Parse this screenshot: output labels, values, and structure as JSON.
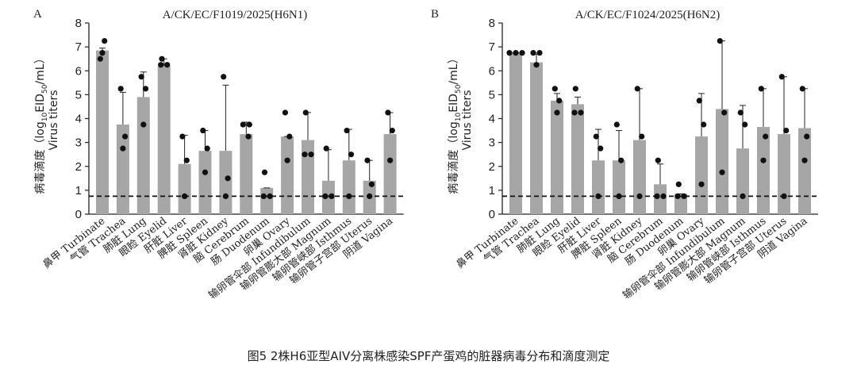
{
  "caption": "图5  2株H6亚型AIV分离株感染SPF产蛋鸡的脏器病毒分布和滴度测定",
  "chart_data": [
    {
      "type": "bar",
      "panel": "A",
      "title": "A/CK/EC/F1019/2025(H6N1)",
      "ylabel_cn": "病毒滴度（log",
      "ylabel_sub1": "10",
      "ylabel_eid": "EID",
      "ylabel_sub2": "50",
      "ylabel_unit": "/mL）",
      "ylabel_en": "Virus titers",
      "ylim": [
        0,
        8
      ],
      "yticks": [
        0,
        1,
        2,
        3,
        4,
        5,
        6,
        7,
        8
      ],
      "detection_limit": 0.75,
      "categories": [
        "鼻甲 Turbinate",
        "气管 Trachea",
        "肺脏 Lung",
        "眼睑 Eyelid",
        "肝脏 Liver",
        "脾脏 Spleen",
        "肾脏 Kidney",
        "脑 Cerebrum",
        "肠 Duodenum",
        "卵巢 Ovary",
        "输卵管伞部 Infundibulum",
        "输卵管膨大部 Magnum",
        "输卵管峡部 Isthmus",
        "输卵管子宫部 Uterus",
        "阴道 Vagina"
      ],
      "values": [
        6.85,
        3.75,
        4.9,
        6.2,
        2.1,
        2.65,
        2.65,
        3.35,
        1.1,
        3.25,
        3.1,
        1.4,
        2.25,
        1.4,
        3.35
      ],
      "error_upper": [
        6.95,
        5.1,
        5.95,
        6.5,
        3.3,
        3.5,
        5.4,
        3.85,
        1.1,
        3.25,
        4.25,
        2.7,
        3.55,
        2.25,
        4.25
      ],
      "points": [
        [
          6.5,
          7.25,
          6.75
        ],
        [
          5.25,
          3.25,
          2.75
        ],
        [
          5.75,
          5.25,
          3.75
        ],
        [
          6.5,
          6.25,
          6.25
        ],
        [
          3.25,
          2.25,
          0.75
        ],
        [
          3.5,
          2.75,
          1.75
        ],
        [
          5.75,
          1.5,
          0.75
        ],
        [
          3.75,
          3.25,
          3.75
        ],
        [
          1.75,
          0.75,
          0.75
        ],
        [
          4.25,
          3.25,
          2.25
        ],
        [
          4.25,
          2.5,
          2.5
        ],
        [
          2.75,
          0.75,
          0.75
        ],
        [
          3.5,
          2.5,
          0.75
        ],
        [
          2.25,
          1.25,
          0.75
        ],
        [
          4.25,
          3.5,
          2.25
        ]
      ]
    },
    {
      "type": "bar",
      "panel": "B",
      "title": "A/CK/EC/F1024/2025(H6N2)",
      "ylabel_cn": "病毒滴度（log",
      "ylabel_sub1": "10",
      "ylabel_eid": "EID",
      "ylabel_sub2": "50",
      "ylabel_unit": "/mL）",
      "ylabel_en": "Virus titers",
      "ylim": [
        0,
        8
      ],
      "yticks": [
        0,
        1,
        2,
        3,
        4,
        5,
        6,
        7,
        8
      ],
      "detection_limit": 0.75,
      "categories": [
        "鼻甲 Turbinate",
        "气管 Trachea",
        "肺脏 Lung",
        "眼睑 Eyelid",
        "肝脏 Liver",
        "脾脏 Spleen",
        "肾脏 Kidney",
        "脑 Cerebrum",
        "肠 Duodenum",
        "卵巢 Ovary",
        "输卵管伞部 Infundibulum",
        "输卵管膨大部 Magnum",
        "输卵管峡部 Isthmus",
        "输卵管子宫部 Uterus",
        "阴道 Vagina"
      ],
      "values": [
        6.75,
        6.35,
        4.75,
        4.6,
        2.25,
        2.25,
        3.1,
        1.25,
        0.85,
        3.25,
        4.4,
        2.75,
        3.65,
        3.35,
        3.6
      ],
      "error_upper": [
        6.75,
        6.7,
        5.05,
        4.9,
        3.55,
        3.5,
        5.25,
        2.1,
        0.85,
        5.05,
        7.25,
        4.55,
        5.25,
        5.75,
        5.25
      ],
      "points": [
        [
          6.75,
          6.75,
          6.75
        ],
        [
          6.75,
          6.75,
          6.25
        ],
        [
          5.25,
          4.75,
          4.25
        ],
        [
          5.25,
          4.25,
          4.25
        ],
        [
          3.25,
          2.75,
          0.75
        ],
        [
          3.75,
          2.25,
          0.75
        ],
        [
          5.25,
          3.25,
          0.75
        ],
        [
          2.25,
          0.75,
          0.75
        ],
        [
          1.25,
          0.75,
          0.75
        ],
        [
          4.75,
          3.75,
          1.25
        ],
        [
          7.25,
          4.25,
          1.75
        ],
        [
          4.25,
          3.75,
          0.75
        ],
        [
          5.25,
          3.25,
          2.25
        ],
        [
          5.75,
          3.5,
          0.75
        ],
        [
          5.25,
          3.25,
          2.25
        ]
      ]
    }
  ]
}
